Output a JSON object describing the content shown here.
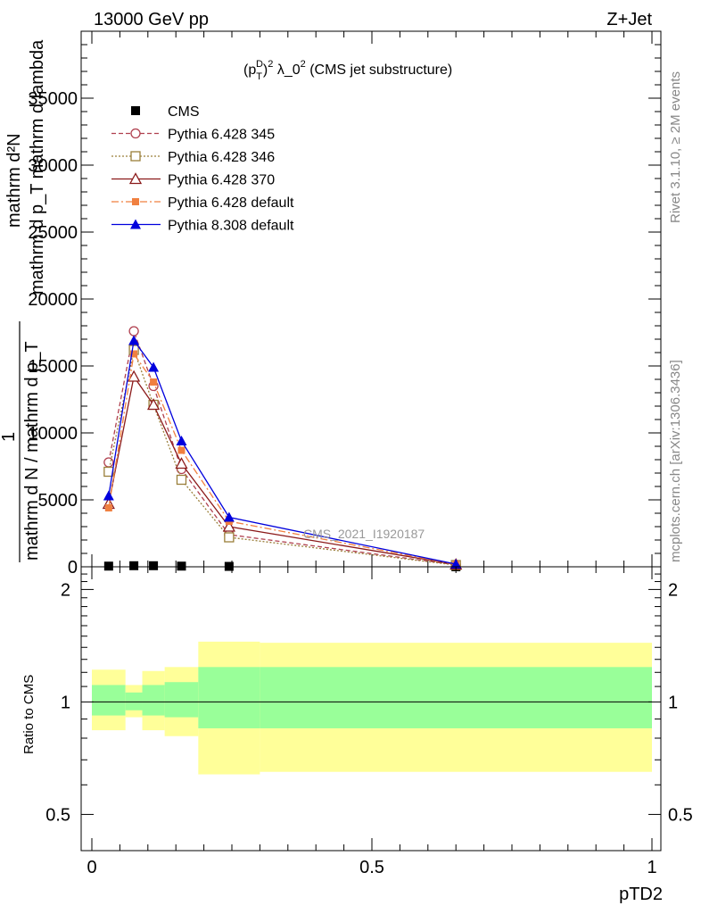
{
  "header": {
    "left": "13000 GeV pp",
    "right": "Z+Jet"
  },
  "side_labels": {
    "rivet": "Rivet 3.1.10, ≥ 2M events",
    "mcplots": "mcplots.cern.ch [arXiv:1306.3436]"
  },
  "watermark": "CMS_2021_I1920187",
  "ylabel_main": {
    "line1": "mathrm d²N",
    "line1b": "mathrm d p_T mathrm d lambda",
    "line2": "1",
    "line3": "mathrm d N / mathrm d p_T"
  },
  "plot_title": {
    "prefix": "(p",
    "sup1": "D",
    "sub1": "T",
    "sup2": "2",
    "rest": " λ_0",
    "sup3": "2",
    "tail": " (CMS jet substructure)"
  },
  "ratio_ylabel": "Ratio to CMS",
  "xlabel": "pTD2",
  "colors": {
    "cms": "#000000",
    "p345": "#b0404f",
    "p346": "#9a7f3a",
    "p370": "#8b1a1a",
    "pdefault": "#f08040",
    "p8": "#0000dd",
    "band_inner": "#99ff99",
    "band_outer": "#ffff99"
  },
  "chart_data": [
    {
      "type": "line",
      "panel": "main",
      "xlim": [
        0,
        1
      ],
      "ylim": [
        0,
        40000
      ],
      "yticks": [
        0,
        5000,
        10000,
        15000,
        20000,
        25000,
        30000,
        35000
      ],
      "ytick_labels": [
        "0",
        "5000",
        "10000",
        "15000",
        "20000",
        "25000",
        "30000",
        "35000"
      ],
      "x": [
        0.03,
        0.075,
        0.11,
        0.16,
        0.245,
        0.65
      ],
      "series": [
        {
          "name": "CMS",
          "key": "cms",
          "marker": "square",
          "values": [
            50,
            80,
            80,
            50,
            30,
            2
          ]
        },
        {
          "name": "Pythia 6.428 345",
          "key": "p345",
          "marker": "circle-open",
          "dash": "5,3",
          "values": [
            7800,
            17600,
            13500,
            7300,
            2400,
            150
          ]
        },
        {
          "name": "Pythia 6.428 346",
          "key": "p346",
          "marker": "square-open",
          "dash": "2,2",
          "values": [
            7100,
            16200,
            12100,
            6500,
            2200,
            130
          ]
        },
        {
          "name": "Pythia 6.428 370",
          "key": "p370",
          "marker": "triangle-open",
          "dash": "",
          "values": [
            4700,
            14200,
            12100,
            7700,
            3000,
            170
          ]
        },
        {
          "name": "Pythia 6.428 default",
          "key": "pdefault",
          "marker": "square-filled",
          "dash": "8,3,2,3",
          "values": [
            4400,
            15900,
            13800,
            8700,
            3400,
            180
          ]
        },
        {
          "name": "Pythia 8.308 default",
          "key": "p8",
          "marker": "triangle-filled",
          "dash": "",
          "values": [
            5300,
            16900,
            14900,
            9400,
            3700,
            200
          ]
        }
      ]
    },
    {
      "type": "area",
      "panel": "ratio",
      "xlim": [
        0,
        1
      ],
      "ylim": [
        0.4,
        2.3
      ],
      "yticks": [
        0.5,
        1,
        2
      ],
      "ytick_labels": [
        "0.5",
        "1",
        "2"
      ],
      "xticks": [
        0,
        0.5,
        1
      ],
      "xtick_labels": [
        "0",
        "0.5",
        "1"
      ],
      "bins": [
        {
          "x0": 0.0,
          "x1": 0.06,
          "inner": [
            0.92,
            1.11
          ],
          "outer": [
            0.84,
            1.22
          ]
        },
        {
          "x0": 0.06,
          "x1": 0.09,
          "inner": [
            0.95,
            1.06
          ],
          "outer": [
            0.91,
            1.11
          ]
        },
        {
          "x0": 0.09,
          "x1": 0.13,
          "inner": [
            0.92,
            1.11
          ],
          "outer": [
            0.84,
            1.21
          ]
        },
        {
          "x0": 0.13,
          "x1": 0.19,
          "inner": [
            0.91,
            1.13
          ],
          "outer": [
            0.81,
            1.24
          ]
        },
        {
          "x0": 0.19,
          "x1": 0.3,
          "inner": [
            0.85,
            1.24
          ],
          "outer": [
            0.64,
            1.45
          ]
        },
        {
          "x0": 0.3,
          "x1": 1.0,
          "inner": [
            0.85,
            1.24
          ],
          "outer": [
            0.65,
            1.44
          ]
        }
      ],
      "reference": 1
    }
  ]
}
